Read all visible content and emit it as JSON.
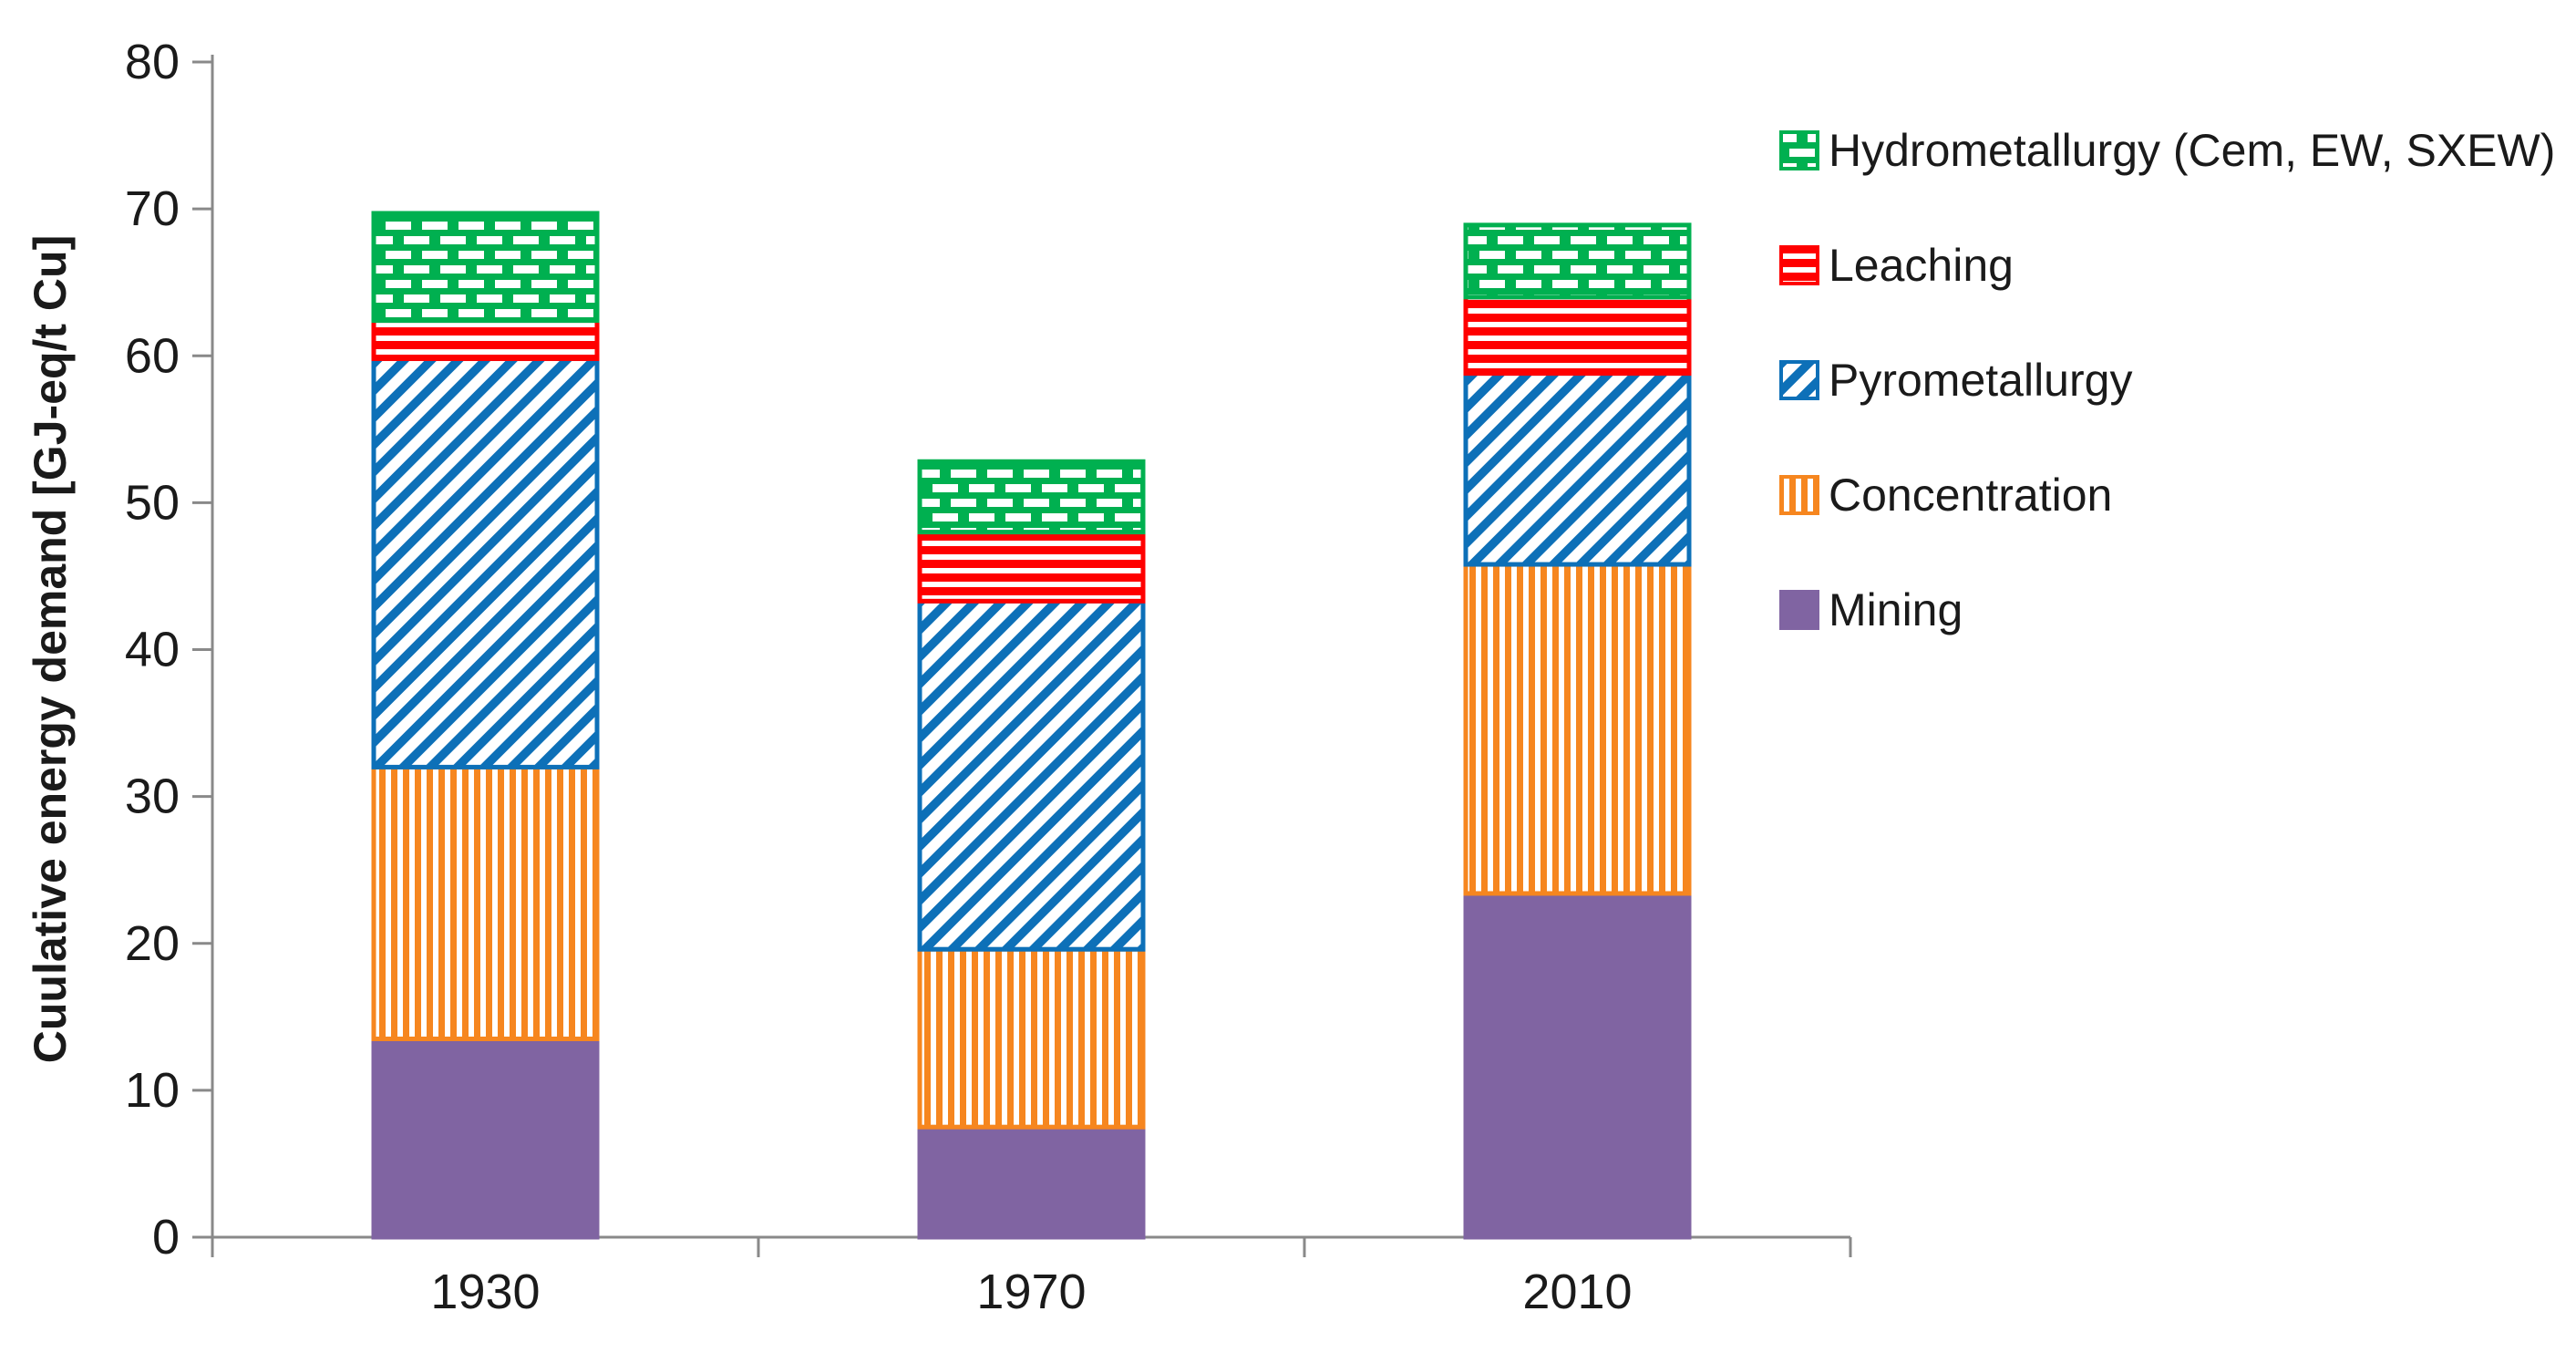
{
  "page": {
    "background": "#ffffff"
  },
  "chart_data": {
    "type": "bar",
    "stacked": true,
    "title": "",
    "xlabel": "",
    "ylabel": "Cuulative energy demand [GJ-eq/t Cu]",
    "categories": [
      "1930",
      "1970",
      "2010"
    ],
    "series": [
      {
        "name": "Mining",
        "pattern": "solid",
        "color": "#8064A2",
        "values": [
          13.5,
          7.5,
          23.4
        ]
      },
      {
        "name": "Concentration",
        "pattern": "vertical-stripes",
        "color": "#F6861F",
        "values": [
          18.5,
          12.1,
          22.4
        ]
      },
      {
        "name": "Pyrometallurgy",
        "pattern": "diagonal-stripes",
        "color": "#0D70B8",
        "values": [
          27.8,
          23.7,
          13.0
        ]
      },
      {
        "name": "Leaching",
        "pattern": "horizontal-stripes",
        "color": "#FF0000",
        "values": [
          2.6,
          4.7,
          5.2
        ]
      },
      {
        "name": "Hydrometallurgy (Cem, EW, SXEW)",
        "pattern": "brick",
        "color": "#00B050",
        "values": [
          7.3,
          4.8,
          4.9
        ]
      }
    ],
    "stack_totals": [
      69.7,
      52.8,
      68.9
    ],
    "ylim": [
      0,
      80
    ],
    "yticks": [
      0,
      10,
      20,
      30,
      40,
      50,
      60,
      70,
      80
    ],
    "grid": false,
    "legend_position": "right",
    "legend_order": [
      "Hydrometallurgy (Cem, EW, SXEW)",
      "Leaching",
      "Pyrometallurgy",
      "Concentration",
      "Mining"
    ],
    "axis_color": "#898989",
    "text_color": "#1a1a1a",
    "pattern_background": "#ffffff"
  }
}
